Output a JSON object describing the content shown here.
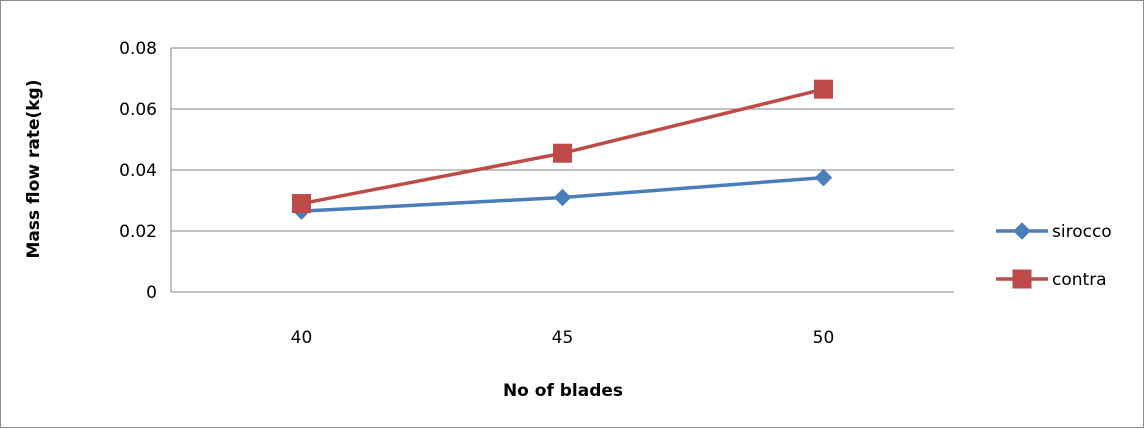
{
  "chart_data": {
    "type": "line",
    "title": "",
    "xlabel": "No of blades",
    "ylabel": "Mass flow rate(kg)",
    "categories": [
      "40",
      "45",
      "50"
    ],
    "ylim": [
      0,
      0.08
    ],
    "yticks": [
      "0",
      "0.02",
      "0.04",
      "0.06",
      "0.08"
    ],
    "grid": true,
    "legend_position": "right",
    "series": [
      {
        "name": "sirocco",
        "values": [
          0.0265,
          0.031,
          0.0375
        ],
        "color": "#4a7ebb",
        "marker": "diamond"
      },
      {
        "name": "contra",
        "values": [
          0.029,
          0.0455,
          0.0665
        ],
        "color": "#be4b48",
        "marker": "square"
      }
    ]
  }
}
